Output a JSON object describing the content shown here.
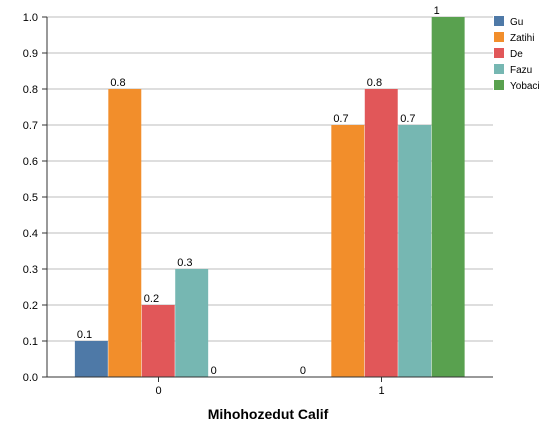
{
  "chart_data": {
    "type": "bar",
    "title": "",
    "xlabel": "Mihohozedut Calif",
    "ylabel": "",
    "categories": [
      "0",
      "1"
    ],
    "ylim": [
      0,
      1
    ],
    "yticks": [
      "0.0",
      "0.1",
      "0.2",
      "0.3",
      "0.4",
      "0.5",
      "0.6",
      "0.7",
      "0.8",
      "0.9",
      "1.0"
    ],
    "grid": true,
    "legend_position": "top-right",
    "series": [
      {
        "name": "Gu",
        "color": "#4e79a7",
        "values": [
          0.1,
          0
        ],
        "labels": [
          "0.1",
          "0"
        ]
      },
      {
        "name": "Zatihi",
        "color": "#f28e2b",
        "values": [
          0.8,
          0.7
        ],
        "labels": [
          "0.8",
          "0.7"
        ]
      },
      {
        "name": "De",
        "color": "#e15759",
        "values": [
          0.2,
          0.8
        ],
        "labels": [
          "0.2",
          "0.8"
        ]
      },
      {
        "name": "Fazu",
        "color": "#76b7b2",
        "values": [
          0.3,
          0.7
        ],
        "labels": [
          "0.3",
          "0.7"
        ]
      },
      {
        "name": "Yobaci",
        "color": "#59a14f",
        "values": [
          0,
          1
        ],
        "labels": [
          "0",
          "1"
        ]
      }
    ]
  }
}
